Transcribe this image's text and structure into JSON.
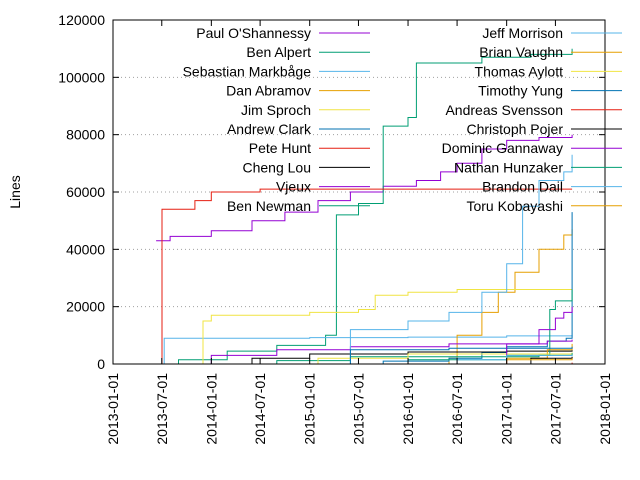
{
  "chart_data": {
    "type": "line",
    "step": true,
    "ylabel": "Lines",
    "xlabel": "",
    "title": "",
    "ylim": [
      0,
      120000
    ],
    "xlim": [
      "2013-01-01",
      "2018-01-01"
    ],
    "y_ticks": [
      "0",
      "20000",
      "40000",
      "60000",
      "80000",
      "100000",
      "120000"
    ],
    "y_tick_values": [
      0,
      20000,
      40000,
      60000,
      80000,
      100000,
      120000
    ],
    "x_ticks": [
      "2013-01-01",
      "2013-07-01",
      "2014-01-01",
      "2014-07-01",
      "2015-01-01",
      "2015-07-01",
      "2016-01-01",
      "2016-07-01",
      "2017-01-01",
      "2017-07-01",
      "2018-01-01"
    ],
    "grid": "dotted-horizontal",
    "legend_placement": "top, two columns",
    "series": [
      {
        "name": "Paul O'Shannessy",
        "color": "#9400d3",
        "points": [
          [
            "2013-06-10",
            43000
          ],
          [
            "2013-08-01",
            44500
          ],
          [
            "2014-01-01",
            46500
          ],
          [
            "2014-06-01",
            50000
          ],
          [
            "2014-10-01",
            53000
          ],
          [
            "2015-02-01",
            57000
          ],
          [
            "2015-06-01",
            60000
          ],
          [
            "2015-10-01",
            62000
          ],
          [
            "2016-02-01",
            64000
          ],
          [
            "2016-05-01",
            67000
          ],
          [
            "2016-07-01",
            70000
          ],
          [
            "2016-10-01",
            75000
          ],
          [
            "2017-01-01",
            78000
          ],
          [
            "2017-05-01",
            79000
          ],
          [
            "2017-09-01",
            80000
          ]
        ]
      },
      {
        "name": "Ben Alpert",
        "color": "#009e73",
        "points": [
          [
            "2013-06-01",
            0
          ],
          [
            "2013-09-01",
            1500
          ],
          [
            "2014-03-01",
            4500
          ],
          [
            "2014-09-01",
            6500
          ],
          [
            "2015-03-01",
            10000
          ],
          [
            "2015-04-10",
            52000
          ],
          [
            "2015-07-01",
            56000
          ],
          [
            "2015-10-01",
            83000
          ],
          [
            "2016-01-01",
            86000
          ],
          [
            "2016-02-01",
            105000
          ],
          [
            "2016-10-01",
            107000
          ],
          [
            "2017-04-01",
            108000
          ],
          [
            "2017-09-01",
            110000
          ]
        ]
      },
      {
        "name": "Sebastian Markbåge",
        "color": "#56b4e9",
        "points": [
          [
            "2013-06-20",
            0
          ],
          [
            "2013-07-10",
            9000
          ],
          [
            "2014-01-01",
            9000
          ],
          [
            "2015-01-01",
            9200
          ],
          [
            "2016-01-01",
            9400
          ],
          [
            "2017-01-01",
            9800
          ],
          [
            "2017-09-01",
            10000
          ]
        ]
      },
      {
        "name": "Dan Abramov",
        "color": "#e69f00",
        "points": [
          [
            "2016-01-15",
            0
          ],
          [
            "2016-06-01",
            2000
          ],
          [
            "2016-07-01",
            10000
          ],
          [
            "2016-10-01",
            18000
          ],
          [
            "2016-12-01",
            25000
          ],
          [
            "2017-02-01",
            32000
          ],
          [
            "2017-05-01",
            40000
          ],
          [
            "2017-08-01",
            45000
          ],
          [
            "2017-09-01",
            47000
          ]
        ]
      },
      {
        "name": "Jim Sproch",
        "color": "#f0e442",
        "points": [
          [
            "2013-11-01",
            0
          ],
          [
            "2013-12-01",
            15000
          ],
          [
            "2014-01-01",
            17000
          ],
          [
            "2015-01-01",
            18000
          ],
          [
            "2015-07-01",
            19000
          ],
          [
            "2015-09-01",
            24000
          ],
          [
            "2016-01-01",
            25000
          ],
          [
            "2016-07-01",
            26000
          ],
          [
            "2017-09-01",
            26000
          ]
        ]
      },
      {
        "name": "Andrew Clark",
        "color": "#0072b2",
        "points": [
          [
            "2015-06-01",
            0
          ],
          [
            "2015-10-01",
            1000
          ],
          [
            "2016-06-01",
            2000
          ],
          [
            "2016-10-01",
            4000
          ],
          [
            "2017-01-01",
            6000
          ],
          [
            "2017-06-01",
            8000
          ],
          [
            "2017-08-10",
            9000
          ],
          [
            "2017-09-01",
            53000
          ]
        ]
      },
      {
        "name": "Pete Hunt",
        "color": "#e51e10",
        "points": [
          [
            "2013-07-01",
            0
          ],
          [
            "2013-07-02",
            54000
          ],
          [
            "2013-11-01",
            57000
          ],
          [
            "2014-01-01",
            60000
          ],
          [
            "2014-07-01",
            61000
          ],
          [
            "2015-02-01",
            61000
          ],
          [
            "2015-07-01",
            61000
          ],
          [
            "2016-03-01",
            61000
          ],
          [
            "2017-09-01",
            61000
          ]
        ]
      },
      {
        "name": "Cheng Lou",
        "color": "#000000",
        "points": [
          [
            "2014-01-01",
            0
          ],
          [
            "2014-06-01",
            2000
          ],
          [
            "2015-01-01",
            3500
          ],
          [
            "2016-01-01",
            4200
          ],
          [
            "2017-01-01",
            4500
          ],
          [
            "2017-09-01",
            4800
          ]
        ]
      },
      {
        "name": "Vjeux",
        "color": "#9400d3",
        "points": [
          [
            "2013-06-01",
            0
          ],
          [
            "2014-01-01",
            3000
          ],
          [
            "2014-09-01",
            5000
          ],
          [
            "2015-06-01",
            6000
          ],
          [
            "2016-06-01",
            7000
          ],
          [
            "2017-06-01",
            8000
          ],
          [
            "2017-09-01",
            8500
          ]
        ]
      },
      {
        "name": "Ben Newman",
        "color": "#009e73",
        "points": [
          [
            "2013-06-01",
            0
          ],
          [
            "2014-09-01",
            1200
          ],
          [
            "2015-06-01",
            2500
          ],
          [
            "2017-05-01",
            3000
          ],
          [
            "2017-06-10",
            19000
          ],
          [
            "2017-07-01",
            22000
          ],
          [
            "2017-09-01",
            26000
          ]
        ]
      },
      {
        "name": "Jeff Morrison",
        "color": "#56b4e9",
        "points": [
          [
            "2014-01-01",
            0
          ],
          [
            "2015-06-01",
            12000
          ],
          [
            "2016-01-01",
            15000
          ],
          [
            "2016-06-01",
            18000
          ],
          [
            "2016-10-01",
            25000
          ],
          [
            "2017-01-01",
            35000
          ],
          [
            "2017-03-01",
            55000
          ],
          [
            "2017-05-01",
            64000
          ],
          [
            "2017-08-01",
            67000
          ],
          [
            "2017-09-01",
            73000
          ]
        ]
      },
      {
        "name": "Brian Vaughn",
        "color": "#e69f00",
        "points": [
          [
            "2016-06-01",
            0
          ],
          [
            "2017-01-01",
            2000
          ],
          [
            "2017-06-01",
            5000
          ],
          [
            "2017-09-01",
            7000
          ]
        ]
      },
      {
        "name": "Thomas Aylott",
        "color": "#f0e442",
        "points": [
          [
            "2014-01-01",
            0
          ],
          [
            "2015-02-01",
            2000
          ],
          [
            "2016-01-01",
            3500
          ],
          [
            "2017-09-01",
            4000
          ]
        ]
      },
      {
        "name": "Timothy Yung",
        "color": "#0072b2",
        "points": [
          [
            "2015-01-01",
            0
          ],
          [
            "2015-06-01",
            5000
          ],
          [
            "2016-06-01",
            5500
          ],
          [
            "2017-09-01",
            6000
          ]
        ]
      },
      {
        "name": "Andreas Svensson",
        "color": "#e51e10",
        "points": [
          [
            "2017-01-01",
            0
          ],
          [
            "2017-09-01",
            500
          ]
        ]
      },
      {
        "name": "Christoph Pojer",
        "color": "#000000",
        "points": [
          [
            "2016-06-01",
            0
          ],
          [
            "2017-04-01",
            2000
          ],
          [
            "2017-09-01",
            2500
          ]
        ]
      },
      {
        "name": "Dominic Gannaway",
        "color": "#9400d3",
        "points": [
          [
            "2016-06-01",
            0
          ],
          [
            "2017-01-01",
            7000
          ],
          [
            "2017-05-01",
            12000
          ],
          [
            "2017-07-01",
            16000
          ],
          [
            "2017-08-01",
            18000
          ],
          [
            "2017-09-01",
            20000
          ]
        ]
      },
      {
        "name": "Nathan Hunzaker",
        "color": "#009e73",
        "points": [
          [
            "2015-01-01",
            0
          ],
          [
            "2016-01-01",
            1500
          ],
          [
            "2017-01-01",
            3000
          ],
          [
            "2017-09-01",
            3800
          ]
        ]
      },
      {
        "name": "Brandon Dail",
        "color": "#56b4e9",
        "points": [
          [
            "2016-01-01",
            0
          ],
          [
            "2016-07-01",
            1500
          ],
          [
            "2017-01-01",
            3000
          ],
          [
            "2017-09-01",
            3200
          ]
        ]
      },
      {
        "name": "Toru Kobayashi",
        "color": "#e69f00",
        "points": [
          [
            "2016-06-01",
            0
          ],
          [
            "2017-01-01",
            1500
          ],
          [
            "2017-09-01",
            2000
          ]
        ]
      }
    ]
  }
}
